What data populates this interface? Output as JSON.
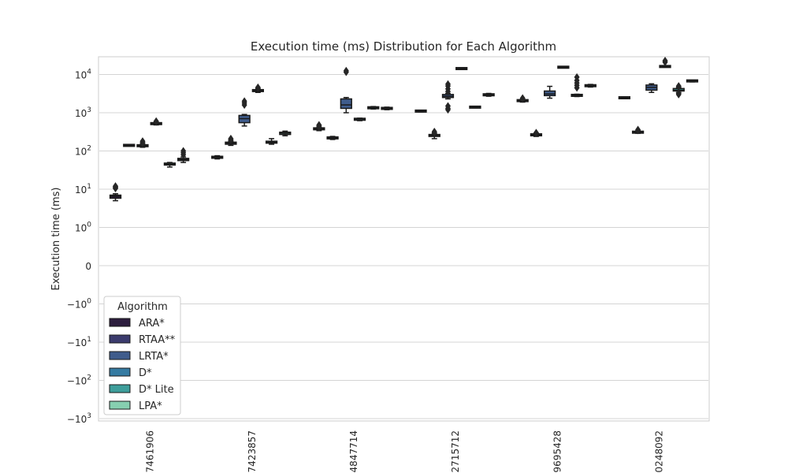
{
  "chart_data": {
    "type": "box",
    "title": "Execution time (ms) Distribution for Each Algorithm",
    "xlabel": "",
    "ylabel": "Execution time (ms)",
    "yscale": "symlog",
    "ylim": [
      -1800,
      25000
    ],
    "y_ticks": [
      {
        "value": 10000,
        "base": "10",
        "exp": "4",
        "sign": ""
      },
      {
        "value": 1000,
        "base": "10",
        "exp": "3",
        "sign": ""
      },
      {
        "value": 100,
        "base": "10",
        "exp": "2",
        "sign": ""
      },
      {
        "value": 10,
        "base": "10",
        "exp": "1",
        "sign": ""
      },
      {
        "value": 1,
        "base": "10",
        "exp": "0",
        "sign": ""
      },
      {
        "value": 0,
        "base": "0",
        "exp": "",
        "sign": ""
      },
      {
        "value": -1,
        "base": "10",
        "exp": "0",
        "sign": "−"
      },
      {
        "value": -10,
        "base": "10",
        "exp": "1",
        "sign": "−"
      },
      {
        "value": -100,
        "base": "10",
        "exp": "2",
        "sign": "−"
      },
      {
        "value": -1000,
        "base": "10",
        "exp": "3",
        "sign": "−"
      }
    ],
    "grid": true,
    "legend": {
      "title": "Algorithm",
      "position": "lower-left"
    },
    "categories": [
      "7461906",
      "7423857",
      "4847714",
      "2715712",
      "9695428",
      "0248092"
    ],
    "series": [
      {
        "name": "ARA*",
        "color": "#2d1e3e",
        "boxes": [
          {
            "q1": 5.8,
            "median": 6.5,
            "q3": 7.0,
            "whislo": 5.0,
            "whishi": 7.6,
            "fliers": [
              10.5,
              11.0,
              11.5,
              12.0
            ]
          },
          {
            "q1": 65,
            "median": 68,
            "q3": 72,
            "whislo": 62,
            "whishi": 75,
            "fliers": []
          },
          {
            "q1": 370,
            "median": 380,
            "q3": 390,
            "whislo": 340,
            "whishi": 410,
            "fliers": [
              420,
              440,
              460,
              480
            ]
          },
          {
            "q1": 1080,
            "median": 1100,
            "q3": 1130,
            "whislo": 1050,
            "whishi": 1160,
            "fliers": []
          },
          {
            "q1": 2000,
            "median": 2080,
            "q3": 2150,
            "whislo": 1900,
            "whishi": 2200,
            "fliers": [
              2300,
              2400
            ]
          },
          {
            "q1": 2430,
            "median": 2470,
            "q3": 2500,
            "whislo": 2400,
            "whishi": 2520,
            "fliers": []
          }
        ]
      },
      {
        "name": "RTAA**",
        "color": "#3b3b6d",
        "boxes": [
          {
            "q1": 138,
            "median": 140,
            "q3": 142,
            "whislo": 135,
            "whishi": 145,
            "fliers": []
          },
          {
            "q1": 150,
            "median": 160,
            "q3": 170,
            "whislo": 140,
            "whishi": 180,
            "fliers": [
              190,
              200,
              210
            ]
          },
          {
            "q1": 210,
            "median": 220,
            "q3": 230,
            "whislo": 200,
            "whishi": 240,
            "fliers": []
          },
          {
            "q1": 240,
            "median": 255,
            "q3": 270,
            "whislo": 210,
            "whishi": 290,
            "fliers": [
              300,
              320
            ]
          },
          {
            "q1": 250,
            "median": 265,
            "q3": 280,
            "whislo": 240,
            "whishi": 290,
            "fliers": [
              300
            ]
          },
          {
            "q1": 300,
            "median": 310,
            "q3": 320,
            "whislo": 290,
            "whishi": 330,
            "fliers": [
              345,
              360
            ]
          }
        ]
      },
      {
        "name": "LRTA*",
        "color": "#3f5c8c",
        "boxes": [
          {
            "q1": 130,
            "median": 138,
            "q3": 145,
            "whislo": 125,
            "whishi": 150,
            "fliers": [
              160,
              170,
              180
            ]
          },
          {
            "q1": 550,
            "median": 700,
            "q3": 850,
            "whislo": 450,
            "whishi": 900,
            "fliers": [
              1600,
              1800,
              2000
            ]
          },
          {
            "q1": 1300,
            "median": 1600,
            "q3": 2300,
            "whislo": 1000,
            "whishi": 2500,
            "fliers": [
              11500,
              12500
            ]
          },
          {
            "q1": 2500,
            "median": 2700,
            "q3": 3000,
            "whislo": 2300,
            "whishi": 3200,
            "fliers": [
              1200,
              1300,
              1500,
              3600,
              4200,
              5000,
              5600
            ]
          },
          {
            "q1": 2800,
            "median": 3100,
            "q3": 3700,
            "whislo": 2400,
            "whishi": 4900,
            "fliers": []
          },
          {
            "q1": 3900,
            "median": 4600,
            "q3": 5300,
            "whislo": 3400,
            "whishi": 5700,
            "fliers": []
          }
        ]
      },
      {
        "name": "D*",
        "color": "#357ba2",
        "boxes": [
          {
            "q1": 500,
            "median": 520,
            "q3": 540,
            "whislo": 480,
            "whishi": 560,
            "fliers": [
              580,
              600
            ]
          },
          {
            "q1": 3600,
            "median": 3800,
            "q3": 4000,
            "whislo": 3400,
            "whishi": 4200,
            "fliers": [
              4400,
              4600
            ]
          },
          {
            "q1": 650,
            "median": 680,
            "q3": 700,
            "whislo": 620,
            "whishi": 720,
            "fliers": []
          },
          {
            "q1": 14100,
            "median": 14300,
            "q3": 14500,
            "whislo": 14000,
            "whishi": 14600,
            "fliers": []
          },
          {
            "q1": 15200,
            "median": 15500,
            "q3": 15800,
            "whislo": 15000,
            "whishi": 16000,
            "fliers": []
          },
          {
            "q1": 15800,
            "median": 16200,
            "q3": 16600,
            "whislo": 15500,
            "whishi": 16800,
            "fliers": [
              21000,
              23000
            ]
          }
        ]
      },
      {
        "name": "D* Lite",
        "color": "#3e9e9b",
        "boxes": [
          {
            "q1": 43,
            "median": 45,
            "q3": 48,
            "whislo": 38,
            "whishi": 50,
            "fliers": []
          },
          {
            "q1": 160,
            "median": 170,
            "q3": 180,
            "whislo": 150,
            "whishi": 210,
            "fliers": []
          },
          {
            "q1": 1300,
            "median": 1350,
            "q3": 1400,
            "whislo": 1250,
            "whishi": 1450,
            "fliers": []
          },
          {
            "q1": 1370,
            "median": 1400,
            "q3": 1430,
            "whislo": 1340,
            "whishi": 1460,
            "fliers": []
          },
          {
            "q1": 2750,
            "median": 2850,
            "q3": 2950,
            "whislo": 2650,
            "whishi": 3050,
            "fliers": [
              4500,
              5200,
              6000,
              7000,
              8500
            ]
          },
          {
            "q1": 3700,
            "median": 3900,
            "q3": 4300,
            "whislo": 3400,
            "whishi": 4500,
            "fliers": [
              3000,
              3200,
              4800,
              5000
            ]
          }
        ]
      },
      {
        "name": "LPA*",
        "color": "#86cfb0",
        "boxes": [
          {
            "q1": 56,
            "median": 60,
            "q3": 64,
            "whislo": 50,
            "whishi": 70,
            "fliers": [
              80,
              90,
              100
            ]
          },
          {
            "q1": 270,
            "median": 290,
            "q3": 310,
            "whislo": 250,
            "whishi": 330,
            "fliers": []
          },
          {
            "q1": 1250,
            "median": 1300,
            "q3": 1350,
            "whislo": 1200,
            "whishi": 1400,
            "fliers": []
          },
          {
            "q1": 2850,
            "median": 2950,
            "q3": 3050,
            "whislo": 2700,
            "whishi": 3200,
            "fliers": []
          },
          {
            "q1": 4900,
            "median": 5100,
            "q3": 5300,
            "whislo": 4700,
            "whishi": 5500,
            "fliers": []
          },
          {
            "q1": 6600,
            "median": 6800,
            "q3": 7000,
            "whislo": 6400,
            "whishi": 7100,
            "fliers": []
          }
        ]
      }
    ]
  }
}
